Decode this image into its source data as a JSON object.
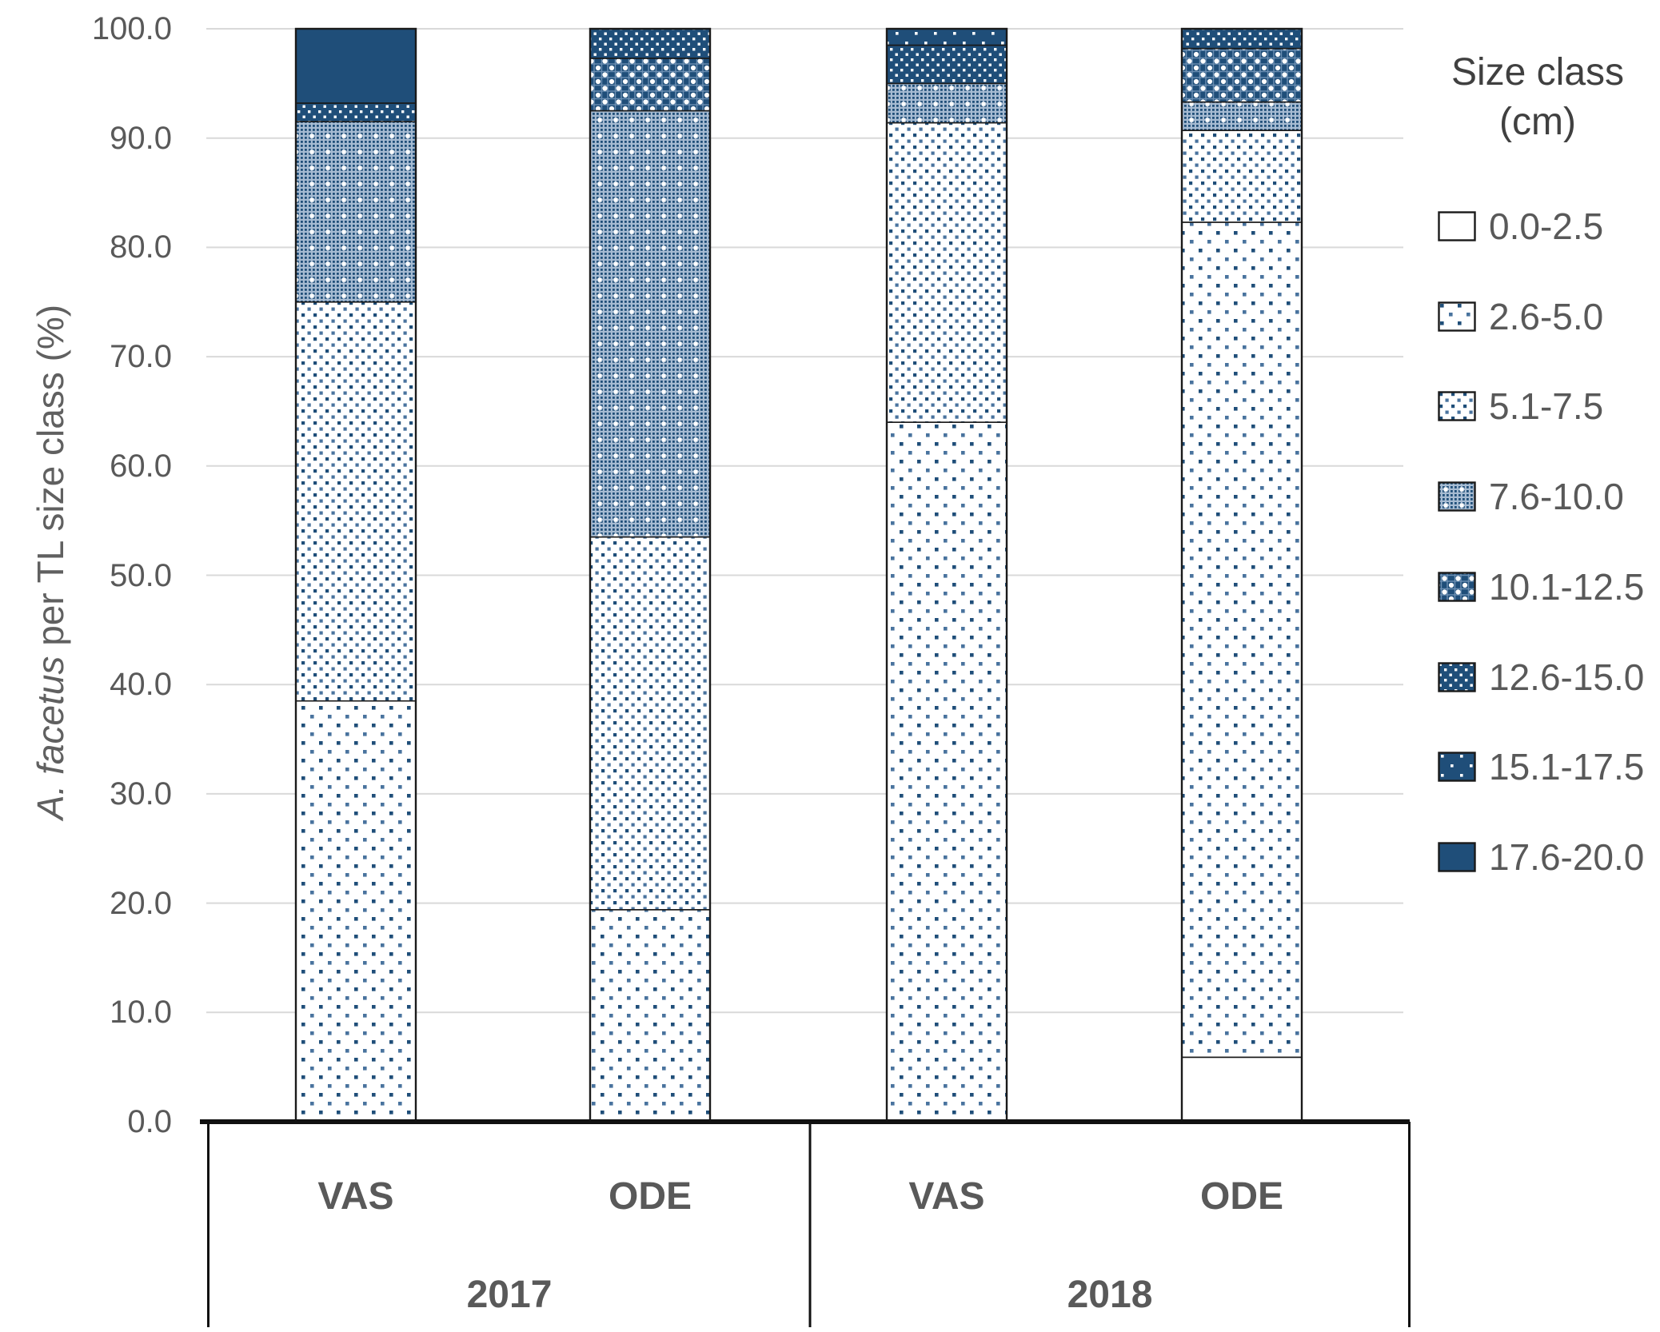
{
  "y_axis": {
    "title_italic": "A. facetus",
    "title_rest": " per TL size class (%)",
    "ticks": [
      "100.0",
      "90.0",
      "80.0",
      "70.0",
      "60.0",
      "50.0",
      "40.0",
      "30.0",
      "20.0",
      "10.0",
      "0.0"
    ]
  },
  "x_axis": {
    "groups": [
      {
        "year": "2017",
        "sites": [
          "VAS",
          "ODE"
        ]
      },
      {
        "year": "2018",
        "sites": [
          "VAS",
          "ODE"
        ]
      }
    ]
  },
  "legend": {
    "title_line1": "Size class",
    "title_line2": "(cm)",
    "items": [
      {
        "label": "0.0-2.5",
        "pattern": "p0"
      },
      {
        "label": "2.6-5.0",
        "pattern": "p1"
      },
      {
        "label": "5.1-7.5",
        "pattern": "p2"
      },
      {
        "label": "7.6-10.0",
        "pattern": "p3"
      },
      {
        "label": "10.1-12.5",
        "pattern": "p4"
      },
      {
        "label": "12.6-15.0",
        "pattern": "p5"
      },
      {
        "label": "15.1-17.5",
        "pattern": "p6"
      },
      {
        "label": "17.6-20.0",
        "pattern": "p7"
      }
    ]
  },
  "colors": {
    "navy": "#1F4E79",
    "hatch_bg": "#A6BBD2",
    "hatch_line": "#6C8FB3",
    "mid_dot": "#49739E",
    "grid": "#D9D9D9",
    "axis_black": "#111111",
    "label_gray": "#595959",
    "title_gray": "#404040"
  },
  "chart_data": {
    "type": "bar",
    "stacked": true,
    "stack_total": 100,
    "title": "",
    "xlabel": "",
    "ylabel": "A. facetus per TL size class (%)",
    "ylim": [
      0,
      100
    ],
    "ytick_step": 10,
    "grid": true,
    "legend_position": "right",
    "legend_title": "Size class (cm)",
    "categories": [
      "VAS 2017",
      "ODE 2017",
      "VAS 2018",
      "ODE 2018"
    ],
    "series": [
      {
        "name": "0.0-2.5",
        "pattern": "p0",
        "values": [
          0,
          0,
          0,
          5.9
        ]
      },
      {
        "name": "2.6-5.0",
        "pattern": "p1",
        "values": [
          38.5,
          19.4,
          64.0,
          76.4
        ]
      },
      {
        "name": "5.1-7.5",
        "pattern": "p2",
        "values": [
          36.5,
          34.1,
          27.4,
          8.4
        ]
      },
      {
        "name": "7.6-10.0",
        "pattern": "p3",
        "values": [
          16.5,
          39.0,
          3.6,
          2.6
        ]
      },
      {
        "name": "10.1-12.5",
        "pattern": "p4",
        "values": [
          0,
          4.8,
          0,
          4.9
        ]
      },
      {
        "name": "12.6-15.0",
        "pattern": "p5",
        "values": [
          1.7,
          2.7,
          3.5,
          1.8
        ]
      },
      {
        "name": "15.1-17.5",
        "pattern": "p6",
        "values": [
          0,
          0,
          1.5,
          0
        ]
      },
      {
        "name": "17.6-20.0",
        "pattern": "p7",
        "values": [
          6.8,
          0,
          0,
          0
        ]
      }
    ]
  }
}
